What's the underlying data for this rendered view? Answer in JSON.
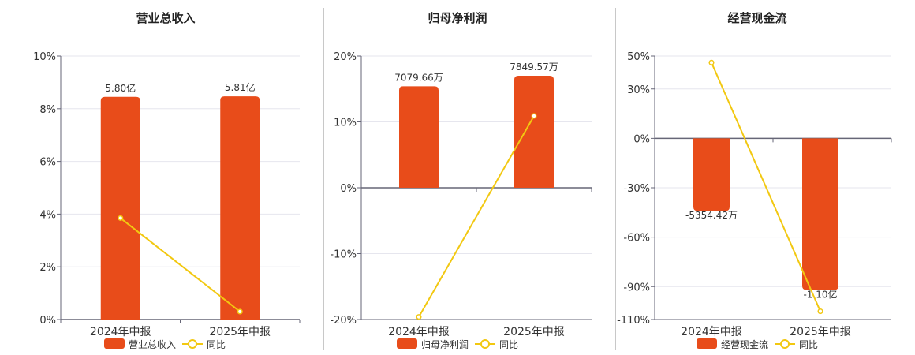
{
  "colors": {
    "bar": "#e84c1a",
    "line": "#f2c811",
    "marker_fill": "#ffffff",
    "grid": "#e6e6ee",
    "axis": "#666677",
    "text": "#333333"
  },
  "chart_data": [
    {
      "type": "bar",
      "title": "营业总收入",
      "categories": [
        "2024年中报",
        "2025年中报"
      ],
      "bar_series": {
        "name": "营业总收入",
        "labels": [
          "5.80亿",
          "5.81亿"
        ],
        "display_values": [
          8.45,
          8.47
        ]
      },
      "line_series": {
        "name": "同比",
        "values": [
          3.85,
          0.3
        ]
      },
      "ylim": [
        0,
        10
      ],
      "yticks": [
        0,
        2,
        4,
        6,
        8,
        10
      ],
      "ytick_labels": [
        "0%",
        "2%",
        "4%",
        "6%",
        "8%",
        "10%"
      ],
      "grid": true,
      "legend": "bottom"
    },
    {
      "type": "bar",
      "title": "归母净利润",
      "categories": [
        "2024年中报",
        "2025年中报"
      ],
      "bar_series": {
        "name": "归母净利润",
        "labels": [
          "7079.66万",
          "7849.57万"
        ],
        "display_values": [
          15.4,
          17.0
        ]
      },
      "line_series": {
        "name": "同比",
        "values": [
          -19.6,
          10.9
        ]
      },
      "ylim": [
        -20,
        20
      ],
      "yticks": [
        -20,
        -10,
        0,
        10,
        20
      ],
      "ytick_labels": [
        "-20%",
        "-10%",
        "0%",
        "10%",
        "20%"
      ],
      "grid": true,
      "legend": "bottom"
    },
    {
      "type": "bar",
      "title": "经营现金流",
      "categories": [
        "2024年中报",
        "2025年中报"
      ],
      "bar_series": {
        "name": "经营现金流",
        "labels": [
          "-5354.42万",
          "-1.10亿"
        ],
        "display_values": [
          -44,
          -92
        ]
      },
      "line_series": {
        "name": "同比",
        "values": [
          46,
          -105
        ]
      },
      "ylim": [
        -110,
        50
      ],
      "yticks": [
        -110,
        -90,
        -60,
        -30,
        0,
        30,
        50
      ],
      "ytick_labels": [
        "-110%",
        "-90%",
        "-60%",
        "-30%",
        "0%",
        "30%",
        "50%"
      ],
      "grid": true,
      "legend": "bottom"
    }
  ]
}
